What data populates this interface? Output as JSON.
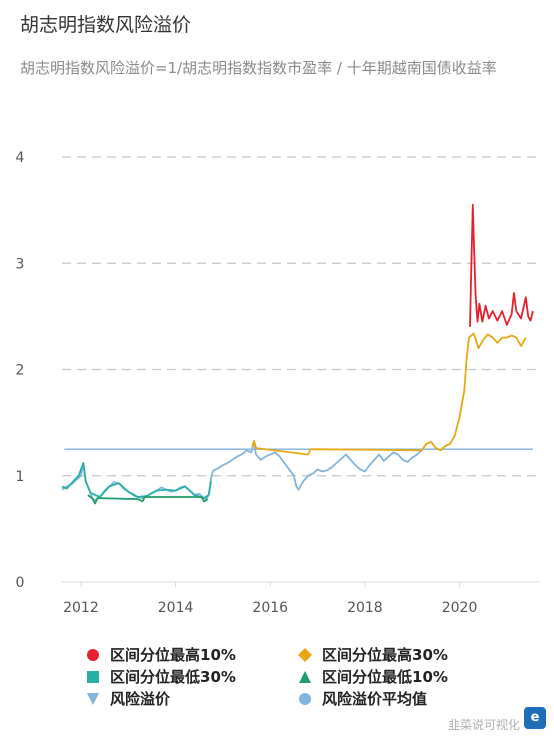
{
  "header": {
    "title": "胡志明指数风险溢价",
    "subtitle": "胡志明指数风险溢价=1/胡志明指数指数市盈率 / 十年期越南国债收益率"
  },
  "chart_data": {
    "type": "line",
    "title": "胡志明指数风险溢价",
    "subtitle": "胡志明指数风险溢价=1/胡志明指数指数市盈率 / 十年期越南国债收益率",
    "xlabel": "",
    "ylabel": "",
    "xlim": [
      2011.6,
      2021.7
    ],
    "ylim": [
      0,
      4
    ],
    "x_ticks": [
      "2012",
      "2014",
      "2016",
      "2018",
      "2020"
    ],
    "y_ticks": [
      "0",
      "1",
      "2",
      "3",
      "4"
    ],
    "grid": "horizontal dashed",
    "legend_position": "bottom",
    "average_line": 1.25,
    "series": [
      {
        "name": "风险溢价",
        "color": "#82b4dd",
        "points": [
          [
            2011.6,
            0.87
          ],
          [
            2011.7,
            0.9
          ],
          [
            2011.8,
            0.92
          ],
          [
            2011.9,
            0.96
          ],
          [
            2012.0,
            1.0
          ],
          [
            2012.05,
            1.12
          ],
          [
            2012.1,
            0.95
          ],
          [
            2012.2,
            0.84
          ],
          [
            2012.25,
            0.78
          ],
          [
            2012.3,
            0.77
          ],
          [
            2012.4,
            0.8
          ],
          [
            2012.5,
            0.86
          ],
          [
            2012.6,
            0.9
          ],
          [
            2012.7,
            0.94
          ],
          [
            2012.8,
            0.93
          ],
          [
            2012.9,
            0.88
          ],
          [
            2013.0,
            0.85
          ],
          [
            2013.1,
            0.82
          ],
          [
            2013.2,
            0.8
          ],
          [
            2013.3,
            0.79
          ],
          [
            2013.4,
            0.81
          ],
          [
            2013.5,
            0.84
          ],
          [
            2013.6,
            0.86
          ],
          [
            2013.7,
            0.89
          ],
          [
            2013.8,
            0.87
          ],
          [
            2013.9,
            0.85
          ],
          [
            2014.0,
            0.86
          ],
          [
            2014.1,
            0.89
          ],
          [
            2014.2,
            0.9
          ],
          [
            2014.3,
            0.86
          ],
          [
            2014.4,
            0.82
          ],
          [
            2014.5,
            0.83
          ],
          [
            2014.6,
            0.79
          ],
          [
            2014.65,
            0.78
          ],
          [
            2014.7,
            0.82
          ],
          [
            2014.75,
            0.98
          ],
          [
            2014.8,
            1.05
          ],
          [
            2014.9,
            1.07
          ],
          [
            2015.0,
            1.1
          ],
          [
            2015.1,
            1.12
          ],
          [
            2015.2,
            1.15
          ],
          [
            2015.3,
            1.18
          ],
          [
            2015.4,
            1.2
          ],
          [
            2015.5,
            1.24
          ],
          [
            2015.6,
            1.22
          ],
          [
            2015.65,
            1.32
          ],
          [
            2015.7,
            1.2
          ],
          [
            2015.8,
            1.15
          ],
          [
            2015.9,
            1.18
          ],
          [
            2016.0,
            1.2
          ],
          [
            2016.1,
            1.22
          ],
          [
            2016.2,
            1.18
          ],
          [
            2016.3,
            1.12
          ],
          [
            2016.4,
            1.06
          ],
          [
            2016.5,
            1.0
          ],
          [
            2016.55,
            0.9
          ],
          [
            2016.6,
            0.87
          ],
          [
            2016.7,
            0.95
          ],
          [
            2016.8,
            1.0
          ],
          [
            2016.9,
            1.02
          ],
          [
            2017.0,
            1.06
          ],
          [
            2017.1,
            1.04
          ],
          [
            2017.2,
            1.05
          ],
          [
            2017.3,
            1.08
          ],
          [
            2017.4,
            1.12
          ],
          [
            2017.5,
            1.16
          ],
          [
            2017.6,
            1.2
          ],
          [
            2017.7,
            1.15
          ],
          [
            2017.8,
            1.1
          ],
          [
            2017.9,
            1.06
          ],
          [
            2018.0,
            1.04
          ],
          [
            2018.1,
            1.1
          ],
          [
            2018.2,
            1.15
          ],
          [
            2018.3,
            1.2
          ],
          [
            2018.4,
            1.14
          ],
          [
            2018.5,
            1.18
          ],
          [
            2018.6,
            1.22
          ],
          [
            2018.7,
            1.2
          ],
          [
            2018.8,
            1.15
          ],
          [
            2018.9,
            1.13
          ],
          [
            2019.0,
            1.17
          ],
          [
            2019.1,
            1.2
          ],
          [
            2019.2,
            1.24
          ]
        ]
      },
      {
        "name": "区间分位最高30%",
        "color": "#e8a814",
        "points": [
          [
            2015.62,
            1.27
          ],
          [
            2015.66,
            1.33
          ],
          [
            2015.7,
            1.26
          ],
          [
            2016.8,
            1.2
          ],
          [
            2016.85,
            1.25
          ],
          [
            2019.2,
            1.24
          ],
          [
            2019.3,
            1.3
          ],
          [
            2019.4,
            1.32
          ],
          [
            2019.5,
            1.26
          ],
          [
            2019.6,
            1.24
          ],
          [
            2019.7,
            1.28
          ],
          [
            2019.8,
            1.3
          ],
          [
            2019.9,
            1.38
          ],
          [
            2020.0,
            1.55
          ],
          [
            2020.1,
            1.8
          ],
          [
            2020.15,
            2.1
          ],
          [
            2020.2,
            2.3
          ],
          [
            2020.3,
            2.34
          ],
          [
            2020.4,
            2.2
          ],
          [
            2020.5,
            2.28
          ],
          [
            2020.6,
            2.33
          ],
          [
            2020.7,
            2.3
          ],
          [
            2020.8,
            2.25
          ],
          [
            2020.9,
            2.3
          ],
          [
            2021.0,
            2.3
          ],
          [
            2021.1,
            2.32
          ],
          [
            2021.2,
            2.3
          ],
          [
            2021.3,
            2.22
          ],
          [
            2021.4,
            2.3
          ]
        ]
      },
      {
        "name": "区间分位最高10%",
        "color": "#e5212e",
        "points": [
          [
            2020.22,
            2.4
          ],
          [
            2020.25,
            3.0
          ],
          [
            2020.28,
            3.55
          ],
          [
            2020.31,
            3.1
          ],
          [
            2020.34,
            2.7
          ],
          [
            2020.38,
            2.45
          ],
          [
            2020.42,
            2.62
          ],
          [
            2020.48,
            2.45
          ],
          [
            2020.55,
            2.6
          ],
          [
            2020.62,
            2.48
          ],
          [
            2020.7,
            2.55
          ],
          [
            2020.8,
            2.46
          ],
          [
            2020.9,
            2.55
          ],
          [
            2021.0,
            2.42
          ],
          [
            2021.1,
            2.52
          ],
          [
            2021.15,
            2.72
          ],
          [
            2021.2,
            2.55
          ],
          [
            2021.3,
            2.48
          ],
          [
            2021.4,
            2.68
          ],
          [
            2021.45,
            2.5
          ],
          [
            2021.5,
            2.46
          ],
          [
            2021.55,
            2.55
          ]
        ]
      },
      {
        "name": "区间分位最低30%",
        "color": "#26b0a7",
        "points": [
          [
            2011.6,
            0.9
          ],
          [
            2011.7,
            0.88
          ],
          [
            2011.8,
            0.93
          ],
          [
            2011.95,
            1.0
          ],
          [
            2012.05,
            1.12
          ],
          [
            2012.1,
            0.95
          ],
          [
            2012.2,
            0.84
          ],
          [
            2012.4,
            0.8
          ],
          [
            2012.6,
            0.9
          ],
          [
            2012.8,
            0.93
          ],
          [
            2013.0,
            0.85
          ],
          [
            2013.2,
            0.8
          ],
          [
            2013.4,
            0.81
          ],
          [
            2013.6,
            0.86
          ],
          [
            2013.8,
            0.87
          ],
          [
            2014.0,
            0.86
          ],
          [
            2014.2,
            0.9
          ],
          [
            2014.4,
            0.82
          ],
          [
            2014.6,
            0.79
          ],
          [
            2014.7,
            0.82
          ],
          [
            2014.75,
            0.95
          ]
        ]
      },
      {
        "name": "区间分位最低10%",
        "color": "#1f9e6b",
        "points": [
          [
            2012.15,
            0.82
          ],
          [
            2012.25,
            0.78
          ],
          [
            2012.3,
            0.74
          ],
          [
            2012.35,
            0.79
          ],
          [
            2013.2,
            0.78
          ],
          [
            2013.3,
            0.76
          ],
          [
            2013.35,
            0.8
          ],
          [
            2014.55,
            0.8
          ],
          [
            2014.6,
            0.76
          ],
          [
            2014.68,
            0.78
          ]
        ]
      }
    ],
    "legend": [
      {
        "name": "区间分位最高10%",
        "marker": "circle",
        "color": "#e5212e"
      },
      {
        "name": "区间分位最高30%",
        "marker": "diamond",
        "color": "#e8a814"
      },
      {
        "name": "区间分位最低30%",
        "marker": "square",
        "color": "#26b0a7"
      },
      {
        "name": "区间分位最低10%",
        "marker": "triangle-up",
        "color": "#1f9e6b"
      },
      {
        "name": "风险溢价",
        "marker": "triangle-down",
        "color": "#82b4dd"
      },
      {
        "name": "风险溢价平均值",
        "marker": "circle",
        "color": "#82b4dd"
      }
    ],
    "average_line_color": "#7fb0db"
  },
  "watermark": {
    "text": "韭菜说可视化",
    "logo": "e"
  }
}
